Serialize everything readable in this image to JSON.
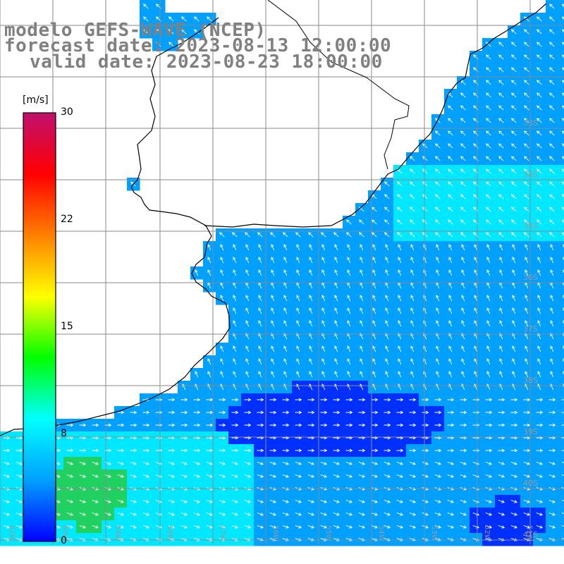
{
  "title": {
    "model": "modelo GEFS-WAVE (NCEP)",
    "forecast": "forecast date: 2023-08-13 12:00:00",
    "valid": "valid date: 2023-08-23 18:00:00"
  },
  "colorbar": {
    "unit": "[m/s]",
    "ticks": [
      "30",
      "22",
      "15",
      "8",
      "0"
    ],
    "range": [
      0,
      30
    ],
    "colors": [
      "#0000ff",
      "#00a0ff",
      "#00ffff",
      "#00ff00",
      "#ffff00",
      "#ff8000",
      "#ff0000",
      "#c0106f"
    ]
  },
  "map": {
    "latitude_labels": [
      "33S",
      "34S",
      "35S",
      "36S",
      "37S",
      "38S",
      "39S",
      "40S",
      "41S"
    ],
    "longitude_labels": [
      "61W",
      "60W",
      "59W",
      "58W",
      "57W",
      "56W",
      "55W",
      "54W",
      "53W",
      "52W",
      "51W"
    ],
    "field": "wind speed (m/s) with wind direction arrows",
    "colors": {
      "ocean_low": "#0030ff",
      "ocean_mid": "#00a0ff",
      "ocean_high": "#00e8ff",
      "green": "#20d060",
      "land": "#ffffff",
      "grid": "#8a8a8a",
      "arrow": "#ffffff",
      "coast": "#000000"
    }
  }
}
